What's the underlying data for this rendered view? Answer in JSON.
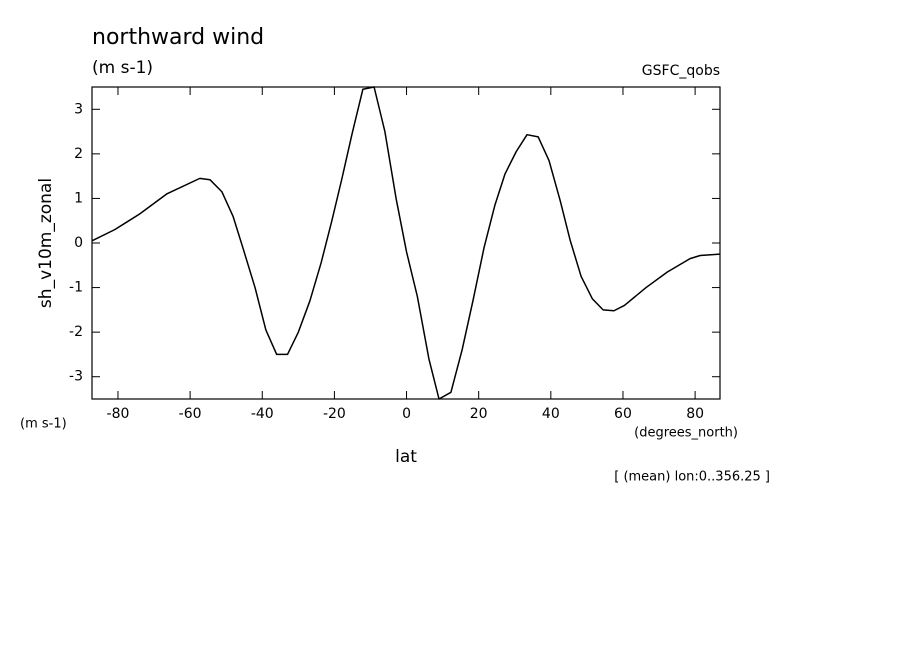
{
  "chart_data": {
    "type": "line",
    "title": "northward wind",
    "units": "(m s-1)",
    "source": "GSFC_qobs",
    "ylabel": "sh_v10m_zonal",
    "y_units": "(m s-1)",
    "xlabel": "lat",
    "x_units": "(degrees_north)",
    "note": "[ (mean) lon:0..356.25 ]",
    "x": [
      -87.2,
      -80.9,
      -74,
      -66.5,
      -57.3,
      -54.5,
      -51.2,
      -48.1,
      -45.4,
      -42,
      -39,
      -36,
      -33,
      -30,
      -26.8,
      -23.7,
      -20.7,
      -17.9,
      -15.1,
      -12.1,
      -9,
      -6,
      -2.9,
      0,
      3,
      6.2,
      9,
      12.3,
      15.4,
      18.4,
      21.5,
      24.5,
      27.3,
      30.4,
      33.4,
      36.5,
      39.5,
      42.6,
      45.4,
      48.4,
      51.5,
      54.5,
      57.5,
      60.4,
      66.4,
      72.3,
      78.6,
      81.4,
      86.9
    ],
    "series": [
      {
        "color": "#000000",
        "values": [
          0.05,
          0.3,
          0.65,
          1.1,
          1.45,
          1.42,
          1.15,
          0.6,
          -0.1,
          -1.0,
          -1.95,
          -2.5,
          -2.5,
          -2.0,
          -1.3,
          -0.45,
          0.5,
          1.45,
          2.45,
          3.45,
          3.5,
          2.5,
          1.0,
          -0.2,
          -1.2,
          -2.6,
          -3.5,
          -3.35,
          -2.4,
          -1.3,
          -0.1,
          0.85,
          1.55,
          2.05,
          2.43,
          2.38,
          1.85,
          0.95,
          0.05,
          -0.75,
          -1.25,
          -1.5,
          -1.52,
          -1.4,
          -1.0,
          -0.65,
          -0.35,
          -0.28,
          -0.25
        ]
      }
    ],
    "xlim": [
      -87.2,
      86.9
    ],
    "ylim": [
      -3.5,
      3.5
    ],
    "xticks": [
      -80,
      -60,
      -40,
      -20,
      0,
      20,
      40,
      60,
      80
    ],
    "yticks": [
      -3,
      -2,
      -1,
      0,
      1,
      2,
      3
    ]
  }
}
